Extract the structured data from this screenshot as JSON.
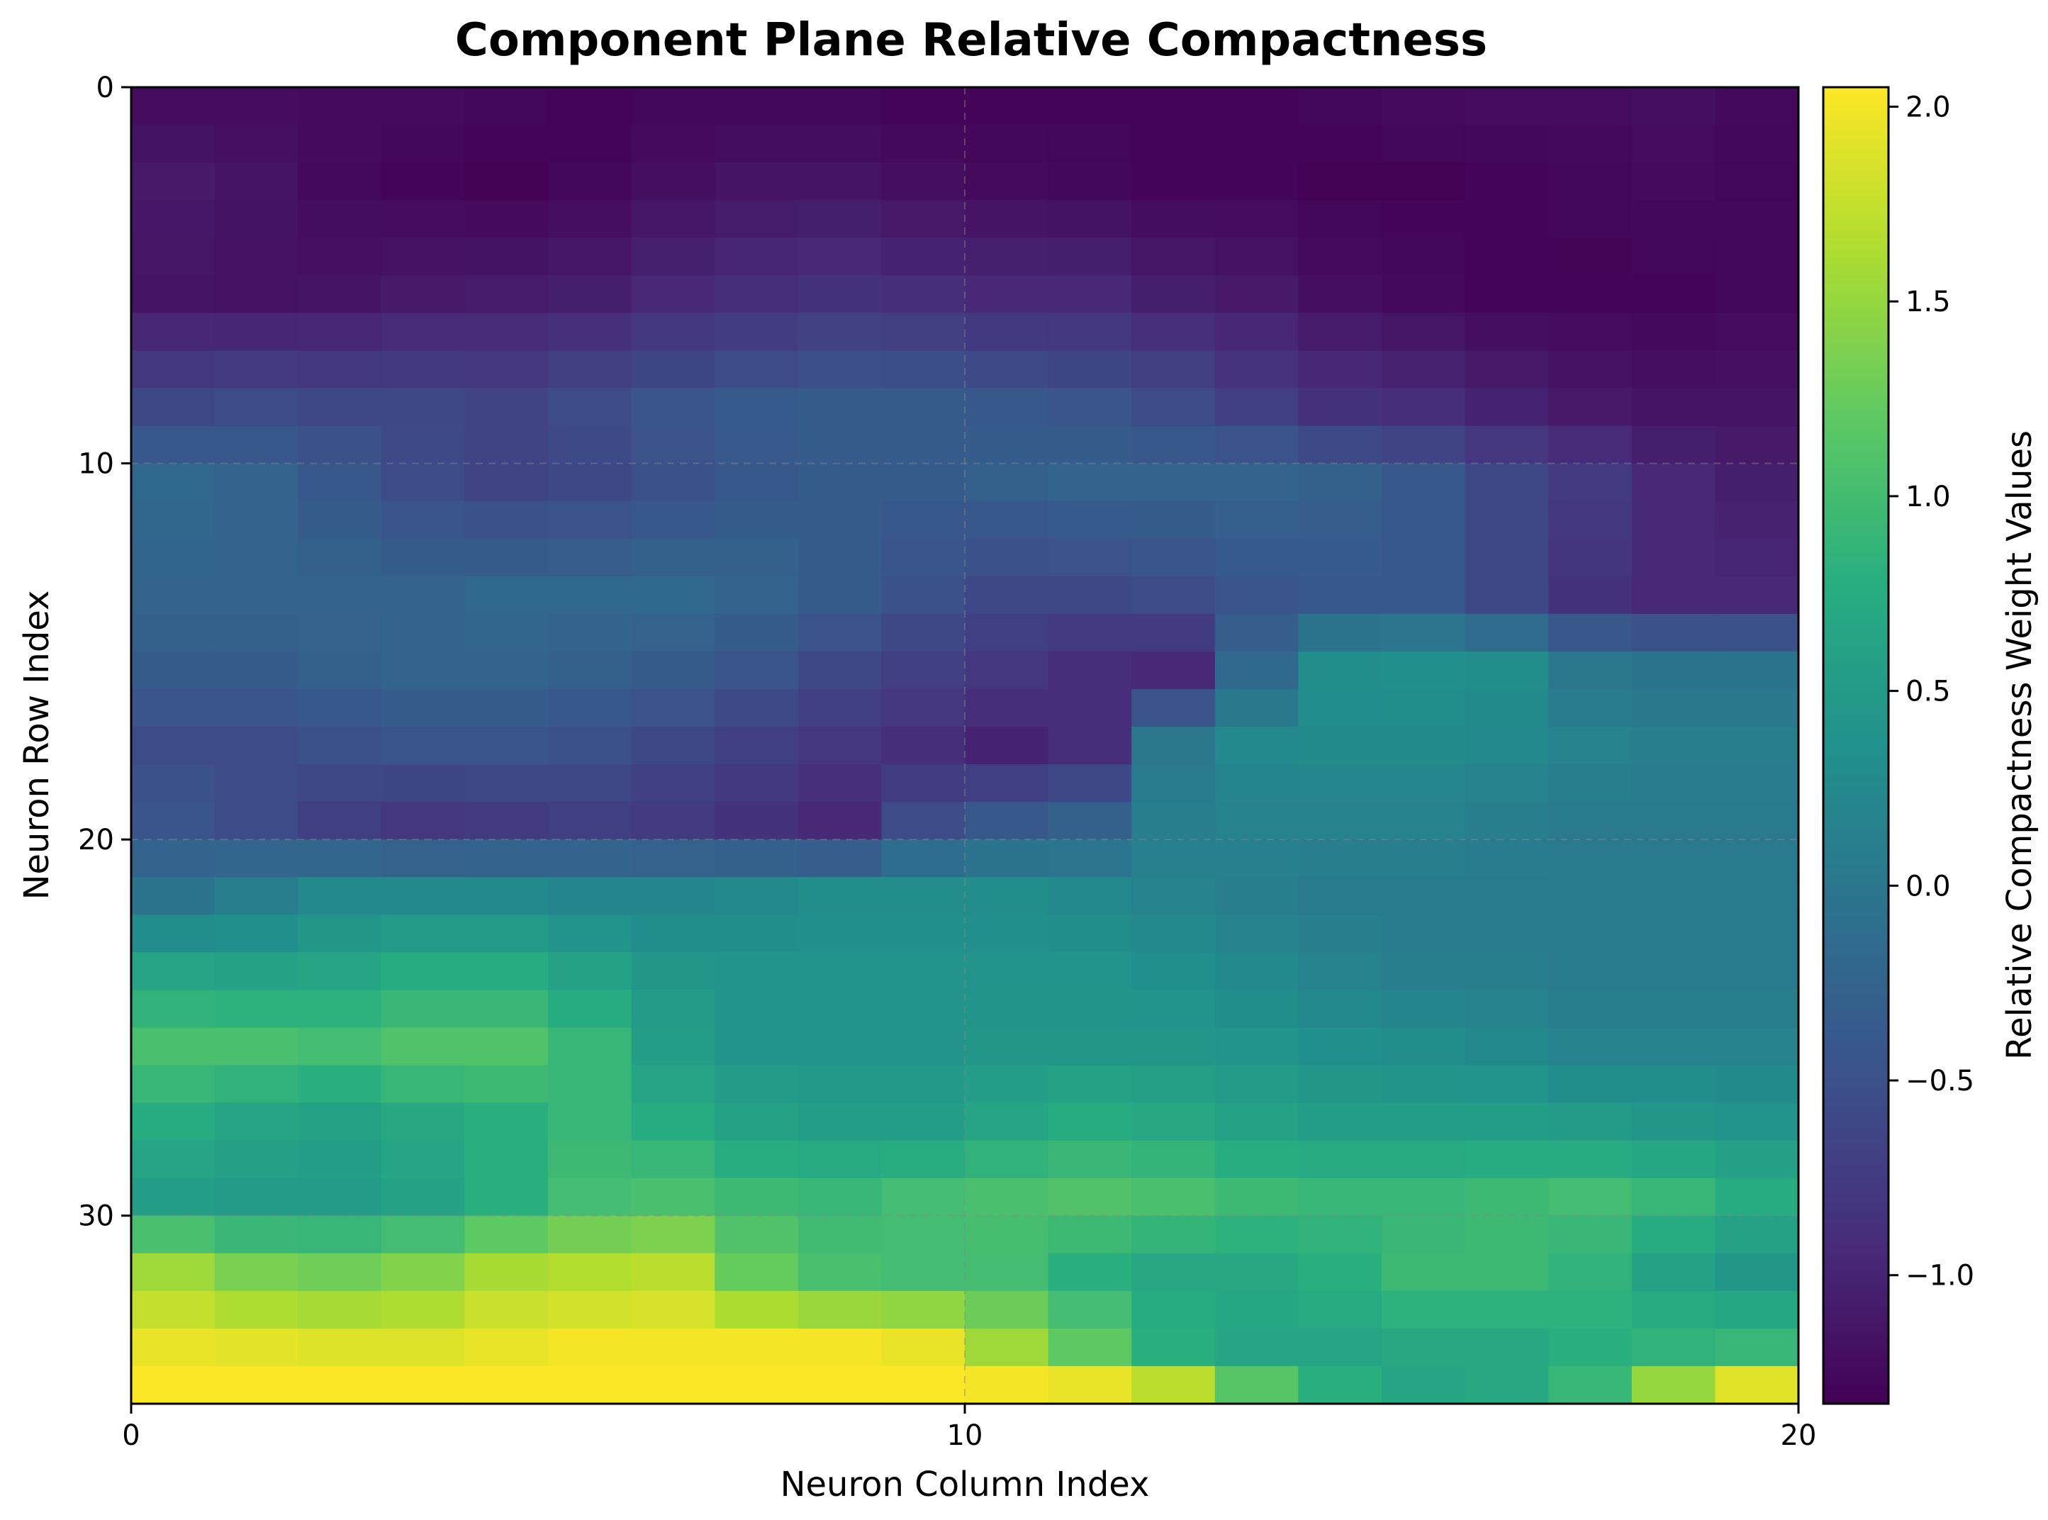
{
  "chart_data": {
    "type": "heatmap",
    "title": "Component Plane Relative Compactness",
    "xlabel": "Neuron Column Index",
    "ylabel": "Neuron Row Index",
    "colorbar_label": "Relative Compactness Weight Values",
    "colormap": "viridis",
    "rows": 35,
    "cols": 20,
    "xlim": [
      0,
      20
    ],
    "ylim": [
      35,
      0
    ],
    "x_ticks": [
      0,
      10,
      20
    ],
    "y_ticks": [
      0,
      10,
      20,
      30
    ],
    "clim": [
      -1.33,
      2.05
    ],
    "colorbar_ticks": [
      -1.0,
      -0.5,
      0.0,
      0.5,
      1.0,
      1.5,
      2.0
    ],
    "colorbar_tick_labels": [
      "−1.0",
      "−0.5",
      "0.0",
      "0.5",
      "1.0",
      "1.5",
      "2.0"
    ],
    "grid": true,
    "anchor_columns": [
      0,
      1,
      2,
      3,
      4,
      5,
      6,
      7,
      8,
      9,
      10,
      11,
      12,
      13,
      14,
      15,
      16,
      17,
      18,
      19
    ],
    "anchor_rows": [
      0,
      2,
      5,
      8,
      10,
      13,
      15,
      17,
      19,
      21,
      23,
      25,
      27,
      29,
      31,
      33,
      34
    ],
    "anchor_values": [
      [
        -1.22,
        -1.22,
        -1.24,
        -1.24,
        -1.28,
        -1.3,
        -1.28,
        -1.28,
        -1.28,
        -1.3,
        -1.3,
        -1.3,
        -1.3,
        -1.3,
        -1.28,
        -1.24,
        -1.22,
        -1.22,
        -1.2,
        -1.25
      ],
      [
        -1.1,
        -1.15,
        -1.25,
        -1.3,
        -1.32,
        -1.28,
        -1.2,
        -1.15,
        -1.15,
        -1.2,
        -1.24,
        -1.26,
        -1.3,
        -1.3,
        -1.32,
        -1.32,
        -1.3,
        -1.28,
        -1.24,
        -1.28
      ],
      [
        -1.15,
        -1.18,
        -1.15,
        -1.1,
        -1.08,
        -1.05,
        -0.95,
        -0.9,
        -0.85,
        -0.9,
        -0.95,
        -0.95,
        -1.05,
        -1.1,
        -1.2,
        -1.25,
        -1.3,
        -1.3,
        -1.3,
        -1.26
      ],
      [
        -0.6,
        -0.55,
        -0.6,
        -0.6,
        -0.65,
        -0.55,
        -0.45,
        -0.38,
        -0.35,
        -0.35,
        -0.4,
        -0.45,
        -0.55,
        -0.7,
        -0.85,
        -0.9,
        -1.0,
        -1.1,
        -1.15,
        -1.15
      ],
      [
        -0.2,
        -0.25,
        -0.4,
        -0.55,
        -0.65,
        -0.6,
        -0.5,
        -0.4,
        -0.35,
        -0.35,
        -0.3,
        -0.25,
        -0.25,
        -0.25,
        -0.3,
        -0.4,
        -0.6,
        -0.75,
        -0.95,
        -1.05
      ],
      [
        -0.25,
        -0.25,
        -0.25,
        -0.25,
        -0.2,
        -0.2,
        -0.2,
        -0.25,
        -0.35,
        -0.5,
        -0.6,
        -0.6,
        -0.55,
        -0.45,
        -0.4,
        -0.4,
        -0.6,
        -0.85,
        -0.95,
        -0.95
      ],
      [
        -0.35,
        -0.35,
        -0.3,
        -0.25,
        -0.25,
        -0.3,
        -0.35,
        -0.45,
        -0.6,
        -0.7,
        -0.8,
        -0.9,
        -0.95,
        -0.2,
        0.3,
        0.35,
        0.3,
        0.0,
        -0.05,
        -0.05
      ],
      [
        -0.55,
        -0.55,
        -0.5,
        -0.45,
        -0.45,
        -0.5,
        -0.6,
        -0.7,
        -0.8,
        -0.9,
        -1.0,
        -0.9,
        0.0,
        0.25,
        0.28,
        0.28,
        0.25,
        0.15,
        0.1,
        0.1
      ],
      [
        -0.45,
        -0.55,
        -0.7,
        -0.8,
        -0.75,
        -0.7,
        -0.75,
        -0.85,
        -0.95,
        -0.55,
        -0.4,
        -0.3,
        0.1,
        0.15,
        0.15,
        0.15,
        0.1,
        0.05,
        0.05,
        0.05
      ],
      [
        -0.05,
        0.1,
        0.25,
        0.25,
        0.25,
        0.2,
        0.2,
        0.25,
        0.3,
        0.3,
        0.3,
        0.25,
        0.15,
        0.1,
        0.05,
        0.05,
        0.05,
        0.05,
        0.05,
        0.05
      ],
      [
        0.65,
        0.6,
        0.65,
        0.75,
        0.75,
        0.6,
        0.45,
        0.4,
        0.4,
        0.4,
        0.4,
        0.4,
        0.35,
        0.25,
        0.15,
        0.1,
        0.1,
        0.05,
        0.05,
        0.05
      ],
      [
        1.05,
        1.05,
        1.0,
        1.1,
        1.1,
        0.9,
        0.55,
        0.4,
        0.4,
        0.4,
        0.45,
        0.45,
        0.45,
        0.4,
        0.35,
        0.3,
        0.25,
        0.15,
        0.15,
        0.15
      ],
      [
        0.75,
        0.65,
        0.6,
        0.7,
        0.8,
        0.9,
        0.75,
        0.6,
        0.55,
        0.55,
        0.65,
        0.75,
        0.7,
        0.6,
        0.55,
        0.55,
        0.55,
        0.5,
        0.45,
        0.4
      ],
      [
        0.55,
        0.5,
        0.5,
        0.6,
        0.8,
        1.0,
        1.05,
        0.95,
        0.9,
        1.0,
        1.05,
        1.1,
        1.05,
        0.95,
        0.9,
        0.9,
        0.95,
        1.0,
        0.9,
        0.75
      ],
      [
        1.55,
        1.35,
        1.3,
        1.4,
        1.6,
        1.65,
        1.7,
        1.25,
        1.05,
        1.0,
        1.0,
        0.8,
        0.7,
        0.7,
        0.8,
        0.95,
        0.95,
        0.85,
        0.6,
        0.45
      ],
      [
        1.95,
        1.92,
        1.88,
        1.88,
        1.95,
        2.0,
        2.0,
        2.0,
        2.0,
        1.95,
        1.55,
        1.2,
        0.8,
        0.65,
        0.65,
        0.7,
        0.7,
        0.8,
        0.85,
        0.9
      ],
      [
        2.04,
        2.04,
        2.04,
        2.04,
        2.04,
        2.04,
        2.04,
        2.04,
        2.04,
        2.04,
        2.0,
        1.95,
        1.7,
        1.15,
        0.8,
        0.65,
        0.7,
        0.9,
        1.5,
        1.9
      ]
    ]
  }
}
